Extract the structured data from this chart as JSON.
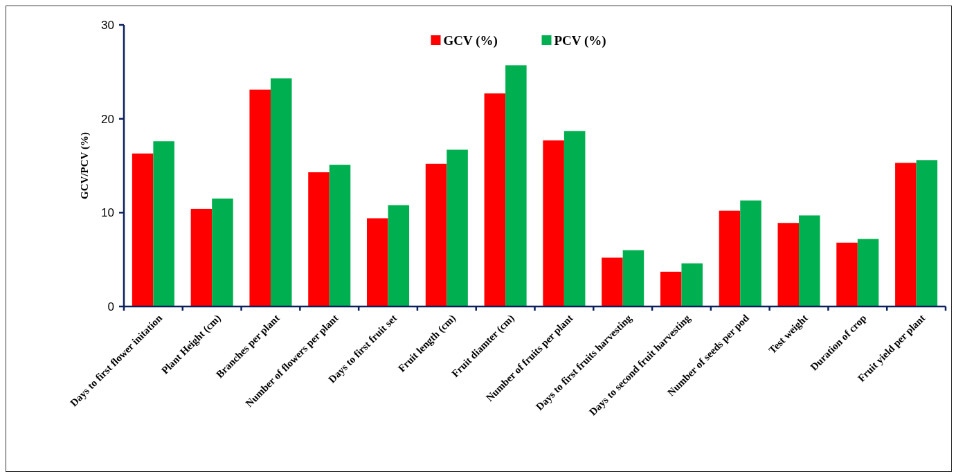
{
  "chart_data": {
    "type": "bar",
    "ylabel": "GCV/PCV (%)",
    "categories": [
      "Days to first flower initation",
      "Plant Height (cm)",
      "Branches per plant",
      "Number of flowers per plant",
      "Days to first fruit set",
      "Fruit length (cm)",
      "Fruit diamter (cm)",
      "Number of fruits per plant",
      "Days to first fruits harvesting",
      "Days to second fruit harvesting",
      "Number of seeds per pod",
      "Test weight",
      "Duration of crop",
      "Fruit yield per plant"
    ],
    "series": [
      {
        "name": "GCV (%)",
        "color": "#ff0000",
        "values": [
          16.3,
          10.4,
          23.1,
          14.3,
          9.4,
          15.2,
          22.7,
          17.7,
          5.2,
          3.7,
          10.2,
          8.9,
          6.8,
          15.3
        ]
      },
      {
        "name": "PCV (%)",
        "color": "#00b050",
        "values": [
          17.6,
          11.5,
          24.3,
          15.1,
          10.8,
          16.7,
          25.7,
          18.7,
          6.0,
          4.6,
          11.3,
          9.7,
          7.2,
          15.6
        ]
      }
    ],
    "ylim": [
      0,
      30
    ],
    "yticks": [
      0,
      10,
      20,
      30
    ],
    "legend": "top",
    "grid": false
  }
}
